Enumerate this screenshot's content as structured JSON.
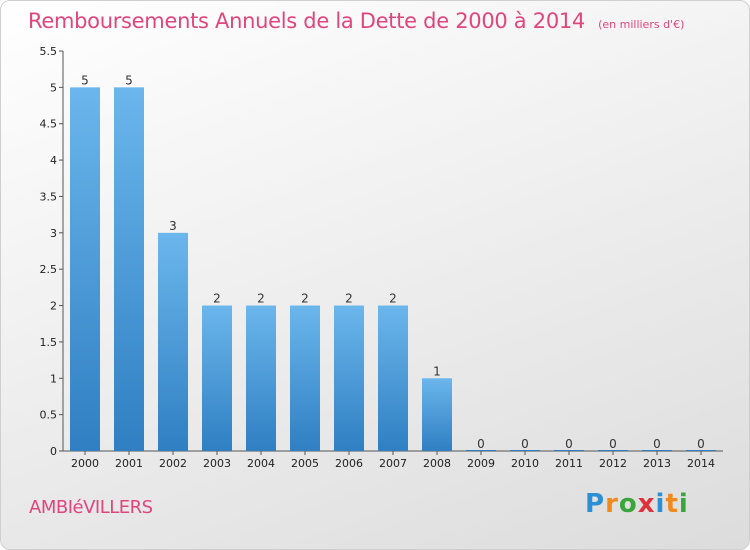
{
  "header": {
    "title": "Remboursements Annuels de la Dette de 2000 à 2014",
    "unit": "(en milliers d'€)"
  },
  "footer": {
    "commune": "AMBIéVILLERS",
    "logo": [
      "P",
      "r",
      "o",
      "x",
      "i",
      "t",
      "i"
    ],
    "logo_colors": [
      "#2b8fd6",
      "#f08a1c",
      "#3aa53a",
      "#e0303a",
      "#2b8fd6",
      "#f08a1c",
      "#3aa53a"
    ]
  },
  "colors": {
    "bar_top": "#6bb6ec",
    "bar_bottom": "#2f7fc2",
    "axis": "#555555"
  },
  "chart_data": {
    "type": "bar",
    "title": "Remboursements Annuels de la Dette de 2000 à 2014",
    "categories": [
      "2000",
      "2001",
      "2002",
      "2003",
      "2004",
      "2005",
      "2006",
      "2007",
      "2008",
      "2009",
      "2010",
      "2011",
      "2012",
      "2013",
      "2014"
    ],
    "values": [
      5,
      5,
      3,
      2,
      2,
      2,
      2,
      2,
      1,
      0,
      0,
      0,
      0,
      0,
      0
    ],
    "value_labels": [
      "5",
      "5",
      "3",
      "2",
      "2",
      "2",
      "2",
      "2",
      "1",
      "0",
      "0",
      "0",
      "0",
      "0",
      "0"
    ],
    "ylim": [
      0,
      5.5
    ],
    "yticks": [
      "0",
      "0.5",
      "1",
      "1.5",
      "2",
      "2.5",
      "3",
      "3.5",
      "4",
      "4.5",
      "5",
      "5.5"
    ],
    "ytick_values": [
      0,
      0.5,
      1,
      1.5,
      2,
      2.5,
      3,
      3.5,
      4,
      4.5,
      5,
      5.5
    ],
    "grid": false,
    "xlabel": "",
    "ylabel": ""
  }
}
